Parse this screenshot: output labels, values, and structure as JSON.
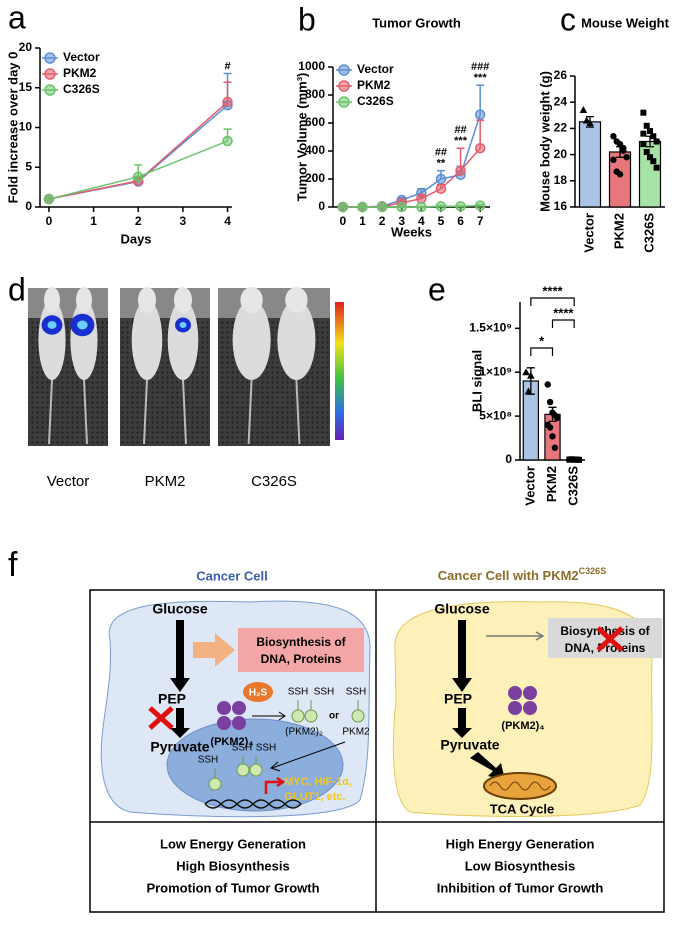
{
  "chart_data": [
    {
      "type": "line",
      "label": "a",
      "xlabel": "Days",
      "ylabel": "Fold increase over day 0",
      "x": [
        0,
        2,
        4
      ],
      "xlim": [
        -0.2,
        4.1
      ],
      "xticks": [
        0,
        1,
        2,
        3,
        4
      ],
      "ylim": [
        0,
        20
      ],
      "yticks": [
        0,
        5,
        10,
        15,
        20
      ],
      "legend": "upper left",
      "series": [
        {
          "name": "Vector",
          "color": "#5b8fd6",
          "values": [
            1,
            3.2,
            12.8
          ],
          "errors": [
            0,
            0.4,
            4
          ]
        },
        {
          "name": "PKM2",
          "color": "#e35d6a",
          "values": [
            1,
            3.3,
            13.2
          ],
          "errors": [
            0,
            0.5,
            2.5
          ]
        },
        {
          "name": "C326S",
          "color": "#6cc46a",
          "values": [
            1,
            3.8,
            8.3
          ],
          "errors": [
            0,
            1.5,
            1.5
          ]
        }
      ],
      "annotations": [
        {
          "x": 4,
          "text": [
            "#"
          ]
        }
      ]
    },
    {
      "type": "line",
      "label": "b",
      "title": "Tumor Growth",
      "xlabel": "Weeks",
      "ylabel": "Tumor Volume (mm³)",
      "x": [
        0,
        1,
        2,
        3,
        4,
        5,
        6,
        7
      ],
      "xlim": [
        -0.5,
        7.5
      ],
      "xticks": [
        0,
        1,
        2,
        3,
        4,
        5,
        6,
        7
      ],
      "ylim": [
        0,
        1000
      ],
      "yticks": [
        0,
        200,
        400,
        600,
        800,
        1000
      ],
      "legend": "upper left",
      "series": [
        {
          "name": "Vector",
          "color": "#5b8fd6",
          "values": [
            0,
            0,
            5,
            50,
            100,
            200,
            230,
            660
          ],
          "errors": [
            0,
            0,
            3,
            15,
            30,
            60,
            60,
            210
          ]
        },
        {
          "name": "PKM2",
          "color": "#e35d6a",
          "values": [
            0,
            0,
            3,
            30,
            60,
            130,
            260,
            420
          ],
          "errors": [
            0,
            0,
            2,
            10,
            20,
            30,
            160,
            200
          ]
        },
        {
          "name": "C326S",
          "color": "#6cc46a",
          "values": [
            0,
            0,
            0,
            0,
            0,
            5,
            5,
            10
          ],
          "errors": [
            0,
            0,
            0,
            0,
            0,
            3,
            3,
            5
          ]
        }
      ],
      "annotations": [
        {
          "x": 5,
          "text": [
            "##",
            "**"
          ]
        },
        {
          "x": 6,
          "text": [
            "##",
            "***"
          ]
        },
        {
          "x": 7,
          "text": [
            "###",
            "***"
          ]
        }
      ]
    },
    {
      "type": "bar",
      "label": "c",
      "title": "Mouse Weight",
      "ylabel": "Mouse body weight (g)",
      "categories": [
        "Vector",
        "PKM2",
        "C326S"
      ],
      "values": [
        22.5,
        20.2,
        21.0
      ],
      "errors": [
        0.4,
        0.4,
        0.4
      ],
      "colors": [
        "#a9c4e4",
        "#e8767d",
        "#a6e3a5"
      ],
      "ylim": [
        16,
        26
      ],
      "yticks": [
        16,
        18,
        20,
        22,
        24,
        26
      ],
      "points": [
        [
          23.4,
          22.6,
          22.4
        ],
        [
          21.4,
          21.0,
          20.8,
          20.3,
          19.8,
          19.6,
          18.7,
          18.5,
          20.5
        ],
        [
          23.2,
          22.2,
          21.8,
          21.4,
          21.0,
          20.8,
          20.2,
          19.8,
          19.5,
          19.0,
          21.6
        ]
      ]
    },
    {
      "type": "bar",
      "label": "e",
      "ylabel": "BLI signal",
      "categories": [
        "Vector",
        "PKM2",
        "C326S"
      ],
      "values": [
        900000000,
        520000000,
        5000000
      ],
      "errors": [
        150000000,
        80000000,
        2000000
      ],
      "colors": [
        "#a9c4e4",
        "#e8767d",
        "#a6e3a5"
      ],
      "ylim": [
        0,
        1800000000
      ],
      "yticks": [
        0,
        {
          "value": 500000000,
          "label": "5×10⁸"
        },
        {
          "value": 1000000000,
          "label": "1×10⁹"
        },
        {
          "value": 1500000000,
          "label": "1.5×10⁹"
        }
      ],
      "points": [
        [
          1000000000,
          780000000,
          960000000
        ],
        [
          860000000,
          660000000,
          540000000,
          510000000,
          480000000,
          400000000,
          370000000,
          270000000,
          140000000
        ],
        [
          5000000,
          8000000,
          3000000,
          6000000,
          2000000,
          4000000,
          7000000,
          5000000,
          4000000
        ]
      ],
      "comparisons": [
        {
          "pair": [
            0,
            1
          ],
          "label": "*"
        },
        {
          "pair": [
            0,
            2
          ],
          "label": "****"
        },
        {
          "pair": [
            1,
            2
          ],
          "label": "****"
        }
      ]
    }
  ],
  "panel_d": {
    "label": "d",
    "groups": [
      "Vector",
      "PKM2",
      "C326S"
    ]
  },
  "panel_f": {
    "label": "f",
    "left": {
      "title": "Cancer Cell",
      "glucose": "Glucose",
      "biosynthesis": [
        "Biosynthesis of",
        "DNA, Proteins"
      ],
      "pep": "PEP",
      "pyruvate": "Pyruvate",
      "h2s": "H₂S",
      "tetramer": "(PKM2)₄",
      "ssh": [
        "SSH",
        "SSH",
        "SSH",
        "SSH",
        "SSH",
        "SSH"
      ],
      "dimer": "(PKM2)₂",
      "or": "or",
      "monomer": "PKM2",
      "targets": [
        "MYC, HIF-1α,",
        "GLUT1, etc."
      ],
      "outcomes": [
        "Low Energy Generation",
        "High Biosynthesis",
        "Promotion of Tumor Growth"
      ]
    },
    "right": {
      "title": "Cancer Cell with PKM2",
      "title_sup": "C326S",
      "glucose": "Glucose",
      "biosynthesis": [
        "Biosynthesis of",
        "DNA, Proteins"
      ],
      "pep": "PEP",
      "tetramer": "(PKM2)₄",
      "pyruvate": "Pyruvate",
      "tca": "TCA Cycle",
      "outcomes": [
        "High Energy Generation",
        "Low Biosynthesis",
        "Inhibition of Tumor Growth"
      ]
    }
  }
}
